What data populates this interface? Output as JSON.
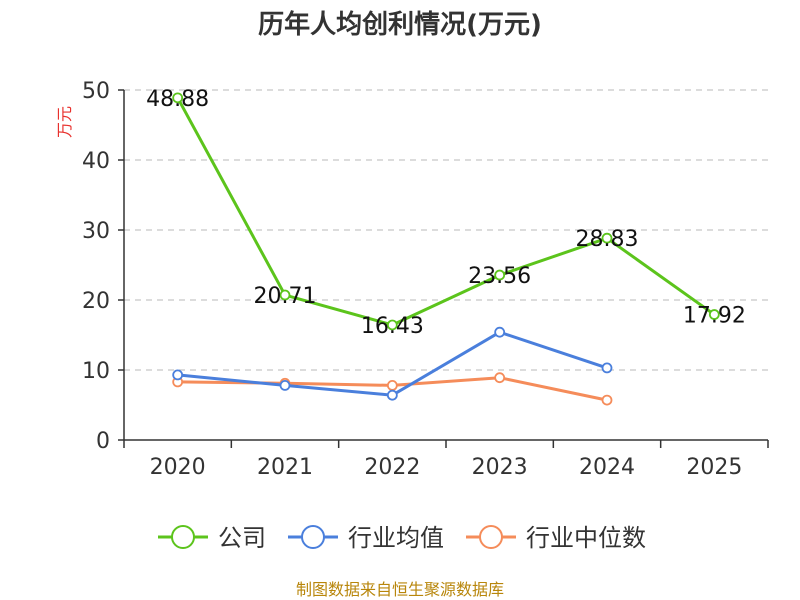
{
  "chart_data": {
    "type": "line",
    "title": "历年人均创利情况(万元)",
    "ylabel": "万元",
    "xlabel": "",
    "categories": [
      "2020",
      "2021",
      "2022",
      "2023",
      "2024",
      "2025"
    ],
    "ylim": [
      0,
      50
    ],
    "yticks": [
      0,
      10,
      20,
      30,
      40,
      50
    ],
    "grid": true,
    "legend_position": "bottom",
    "series": [
      {
        "name": "公司",
        "color": "#5cc41c",
        "values": [
          48.88,
          20.71,
          16.43,
          23.56,
          28.83,
          17.92
        ],
        "labels": [
          "48.88",
          "20.71",
          "16.43",
          "23.56",
          "28.83",
          "17.92"
        ]
      },
      {
        "name": "行业均值",
        "color": "#4a7fdc",
        "values": [
          9.3,
          7.8,
          6.4,
          15.4,
          10.3,
          null
        ]
      },
      {
        "name": "行业中位数",
        "color": "#f58c5a",
        "values": [
          8.3,
          8.1,
          7.8,
          8.9,
          5.7,
          null
        ]
      }
    ]
  },
  "source": "制图数据来自恒生聚源数据库"
}
